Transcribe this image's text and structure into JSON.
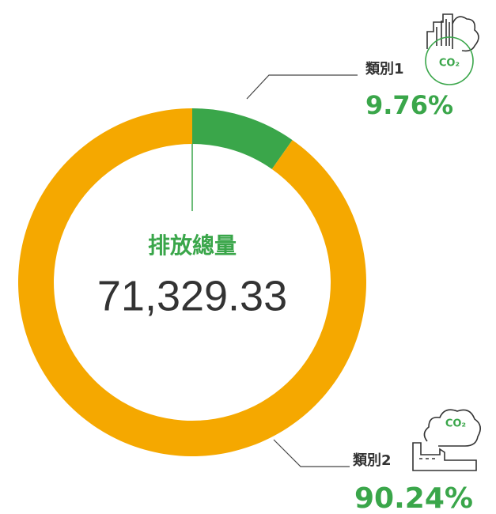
{
  "chart_data": {
    "type": "donut",
    "categories": [
      "類別1",
      "類別2"
    ],
    "values": [
      9.76,
      90.24
    ],
    "value_labels": [
      "9.76%",
      "90.24%"
    ],
    "colors": [
      "#3aa64a",
      "#f5a800"
    ],
    "center_title": "排放總量",
    "center_value": "71,329.33",
    "icon_text": [
      "CO₂",
      "CO₂"
    ]
  }
}
